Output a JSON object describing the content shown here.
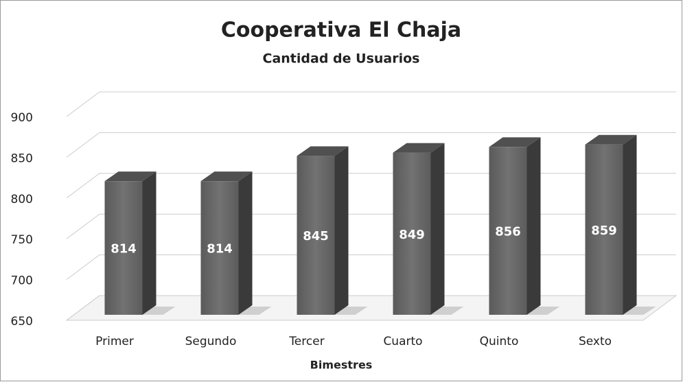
{
  "chart_data": {
    "type": "bar3d",
    "title": "Cooperativa El Chaja",
    "subtitle": "Cantidad de Usuarios",
    "x_label": "Bimestres",
    "categories": [
      "Primer",
      "Segundo",
      "Tercer",
      "Cuarto",
      "Quinto",
      "Sexto"
    ],
    "values": [
      814,
      814,
      845,
      849,
      856,
      859
    ],
    "color": "#666666",
    "ylim": [
      650,
      900
    ],
    "yticks": [
      650,
      700,
      750,
      800,
      850,
      900
    ],
    "grid": true
  }
}
